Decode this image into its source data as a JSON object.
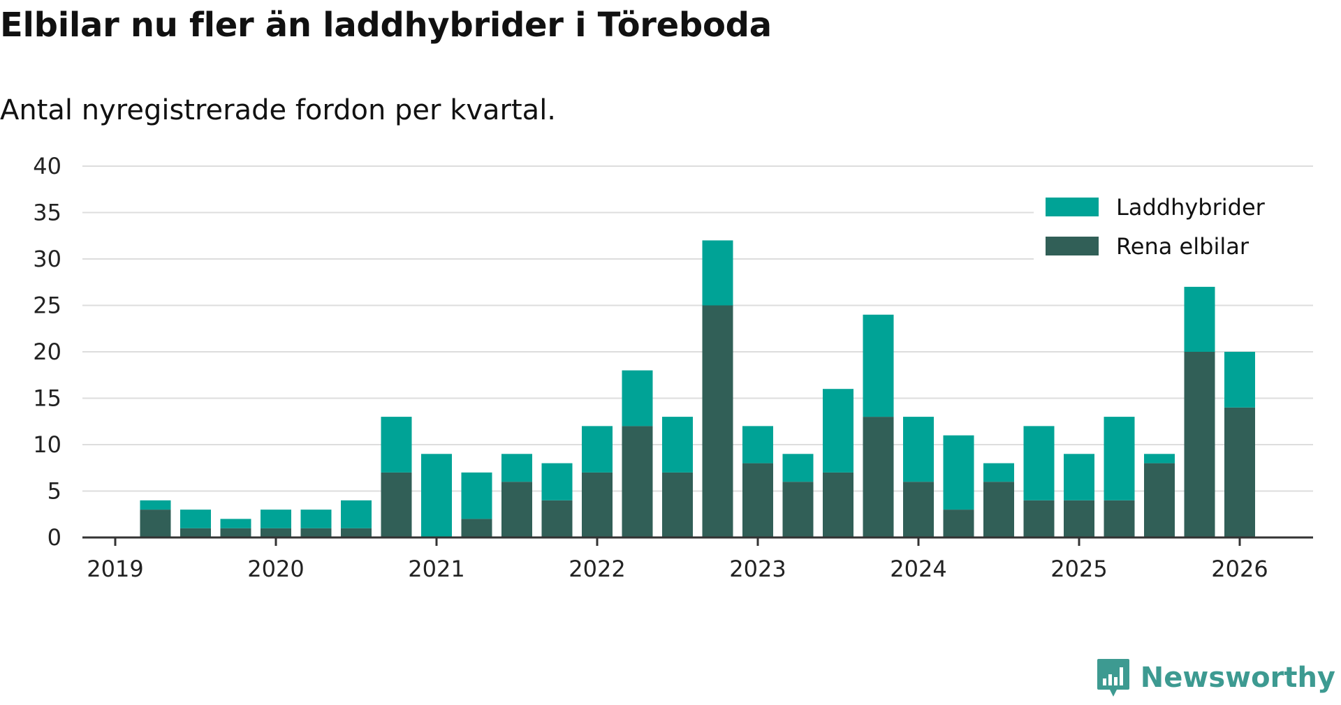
{
  "title": "Elbilar nu fler än laddhybrider i Töreboda",
  "subtitle": "Antal nyregistrerade fordon per kvartal.",
  "brand": "Newsworthy",
  "colors": {
    "laddhybrider": "#00a396",
    "rena_elbilar": "#315f57",
    "grid": "#dddddd",
    "axis": "#333333"
  },
  "chart_data": {
    "type": "bar",
    "stacked": true,
    "ylim": [
      0,
      40
    ],
    "yticks": [
      0,
      5,
      10,
      15,
      20,
      25,
      30,
      35,
      40
    ],
    "xticks": [
      "2019",
      "2020",
      "2021",
      "2022",
      "2023",
      "2024",
      "2025",
      "2026"
    ],
    "categories": [
      "2019 Q2",
      "2019 Q3",
      "2019 Q4",
      "2020 Q1",
      "2020 Q2",
      "2020 Q3",
      "2020 Q4",
      "2021 Q1",
      "2021 Q2",
      "2021 Q3",
      "2021 Q4",
      "2022 Q1",
      "2022 Q2",
      "2022 Q3",
      "2022 Q4",
      "2023 Q1",
      "2023 Q2",
      "2023 Q3",
      "2023 Q4",
      "2024 Q1",
      "2024 Q2",
      "2024 Q3",
      "2024 Q4",
      "2025 Q1",
      "2025 Q2",
      "2025 Q3",
      "2025 Q4",
      "2026 Q1"
    ],
    "series": [
      {
        "name": "Rena elbilar",
        "values": [
          3,
          1,
          1,
          1,
          1,
          1,
          7,
          0,
          2,
          6,
          4,
          7,
          12,
          7,
          25,
          8,
          6,
          7,
          13,
          6,
          3,
          6,
          4,
          4,
          4,
          8,
          20,
          14
        ]
      },
      {
        "name": "Laddhybrider",
        "values": [
          1,
          2,
          1,
          2,
          2,
          3,
          6,
          9,
          5,
          3,
          4,
          5,
          6,
          6,
          7,
          4,
          3,
          9,
          11,
          7,
          8,
          2,
          8,
          5,
          9,
          1,
          7,
          6
        ]
      }
    ],
    "legend": [
      "Laddhybrider",
      "Rena elbilar"
    ],
    "legend_position": "top-right"
  }
}
